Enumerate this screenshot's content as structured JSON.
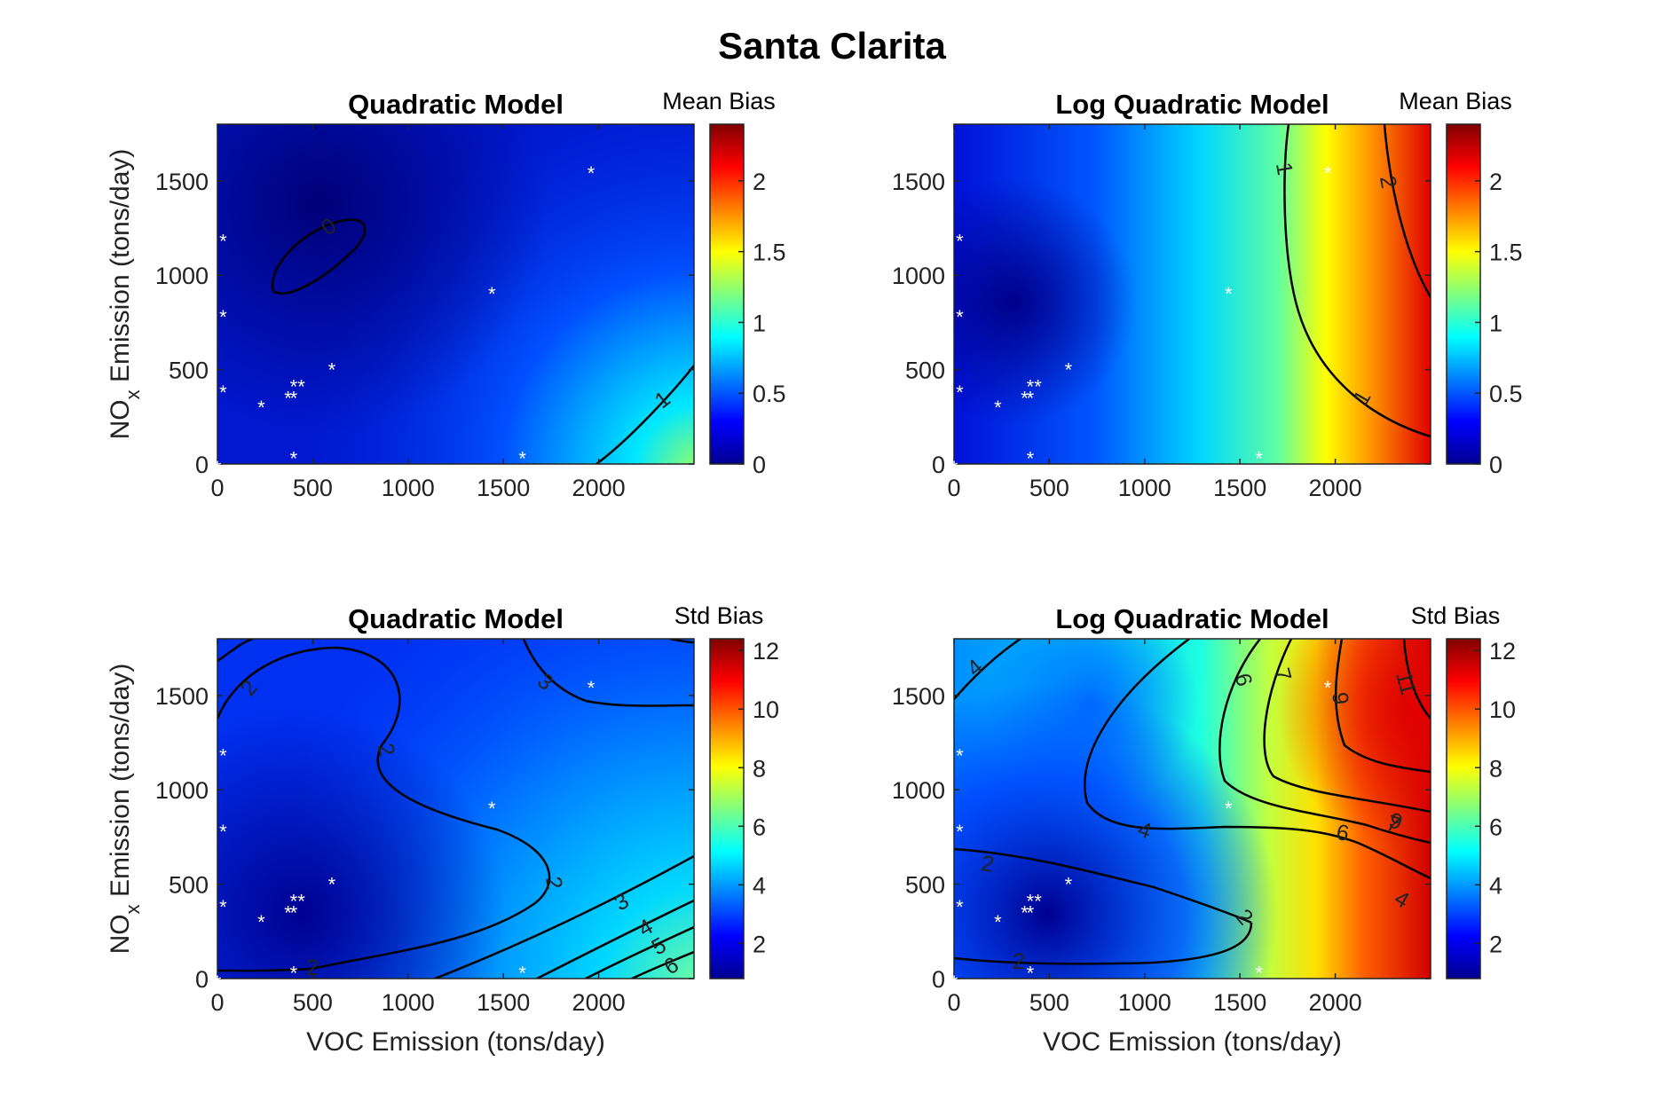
{
  "title": "Santa Clarita",
  "chart_data": [
    {
      "type": "heatmap",
      "title": "Quadratic Model",
      "xlabel": "",
      "ylabel": "NO",
      "ylabel_sub": "x",
      "ylabel_rest": " Emission (tons/day)",
      "colorbar_label": "Mean Bias",
      "xlim": [
        0,
        2500
      ],
      "ylim": [
        0,
        1800
      ],
      "xticks": [
        0,
        500,
        1000,
        1500,
        2000
      ],
      "yticks": [
        0,
        500,
        1000,
        1500
      ],
      "clim": [
        0,
        2.4
      ],
      "cticks": [
        "0",
        "0.5",
        "1",
        "1.5",
        "2"
      ],
      "cticks_values": [
        0,
        0.5,
        1,
        1.5,
        2
      ],
      "contour_labels": [
        "0",
        "1"
      ],
      "points": [
        [
          0,
          0
        ],
        [
          30,
          1200
        ],
        [
          30,
          800
        ],
        [
          30,
          400
        ],
        [
          230,
          320
        ],
        [
          370,
          370
        ],
        [
          400,
          370
        ],
        [
          400,
          430
        ],
        [
          440,
          430
        ],
        [
          600,
          520
        ],
        [
          400,
          50
        ],
        [
          1440,
          920
        ],
        [
          1600,
          50
        ],
        [
          1960,
          1560
        ]
      ]
    },
    {
      "type": "heatmap",
      "title": "Log Quadratic Model",
      "xlabel": "",
      "ylabel": "",
      "colorbar_label": "Mean Bias",
      "xlim": [
        0,
        2500
      ],
      "ylim": [
        0,
        1800
      ],
      "xticks": [
        0,
        500,
        1000,
        1500,
        2000
      ],
      "yticks": [
        0,
        500,
        1000,
        1500
      ],
      "clim": [
        0,
        2.4
      ],
      "cticks": [
        "0",
        "0.5",
        "1",
        "1.5",
        "2"
      ],
      "cticks_values": [
        0,
        0.5,
        1,
        1.5,
        2
      ],
      "contour_labels": [
        "1",
        "1",
        "2"
      ],
      "points": [
        [
          0,
          0
        ],
        [
          30,
          1200
        ],
        [
          30,
          800
        ],
        [
          30,
          400
        ],
        [
          230,
          320
        ],
        [
          370,
          370
        ],
        [
          400,
          370
        ],
        [
          400,
          430
        ],
        [
          440,
          430
        ],
        [
          600,
          520
        ],
        [
          400,
          50
        ],
        [
          1440,
          920
        ],
        [
          1600,
          50
        ],
        [
          1960,
          1560
        ]
      ]
    },
    {
      "type": "heatmap",
      "title": "Quadratic Model",
      "xlabel": "VOC Emission (tons/day)",
      "ylabel": "NO",
      "ylabel_sub": "x",
      "ylabel_rest": " Emission (tons/day)",
      "colorbar_label": "Std Bias",
      "xlim": [
        0,
        2500
      ],
      "ylim": [
        0,
        1800
      ],
      "xticks": [
        0,
        500,
        1000,
        1500,
        2000
      ],
      "yticks": [
        0,
        500,
        1000,
        1500
      ],
      "clim": [
        0.8,
        12.4
      ],
      "cticks": [
        "2",
        "4",
        "6",
        "8",
        "10",
        "12"
      ],
      "cticks_values": [
        2,
        4,
        6,
        8,
        10,
        12
      ],
      "contour_labels": [
        "2",
        "2",
        "2",
        "2",
        "3",
        "3",
        "4",
        "5",
        "6"
      ],
      "points": [
        [
          0,
          0
        ],
        [
          30,
          1200
        ],
        [
          30,
          800
        ],
        [
          30,
          400
        ],
        [
          230,
          320
        ],
        [
          370,
          370
        ],
        [
          400,
          370
        ],
        [
          400,
          430
        ],
        [
          440,
          430
        ],
        [
          600,
          520
        ],
        [
          400,
          50
        ],
        [
          1440,
          920
        ],
        [
          1600,
          50
        ],
        [
          1960,
          1560
        ]
      ]
    },
    {
      "type": "heatmap",
      "title": "Log Quadratic Model",
      "xlabel": "VOC Emission (tons/day)",
      "ylabel": "",
      "colorbar_label": "Std Bias",
      "xlim": [
        0,
        2500
      ],
      "ylim": [
        0,
        1800
      ],
      "xticks": [
        0,
        500,
        1000,
        1500,
        2000
      ],
      "yticks": [
        0,
        500,
        1000,
        1500
      ],
      "clim": [
        0.8,
        12.4
      ],
      "cticks": [
        "2",
        "4",
        "6",
        "8",
        "10",
        "12"
      ],
      "cticks_values": [
        2,
        4,
        6,
        8,
        10,
        12
      ],
      "contour_labels": [
        "4",
        "2",
        "2",
        "2",
        "4",
        "4",
        "6",
        "6",
        "7",
        "7",
        "9",
        "9",
        "11"
      ],
      "points": [
        [
          0,
          0
        ],
        [
          30,
          1200
        ],
        [
          30,
          800
        ],
        [
          30,
          400
        ],
        [
          230,
          320
        ],
        [
          370,
          370
        ],
        [
          400,
          370
        ],
        [
          400,
          430
        ],
        [
          440,
          430
        ],
        [
          600,
          520
        ],
        [
          400,
          50
        ],
        [
          1440,
          920
        ],
        [
          1600,
          50
        ],
        [
          1960,
          1560
        ]
      ]
    }
  ]
}
